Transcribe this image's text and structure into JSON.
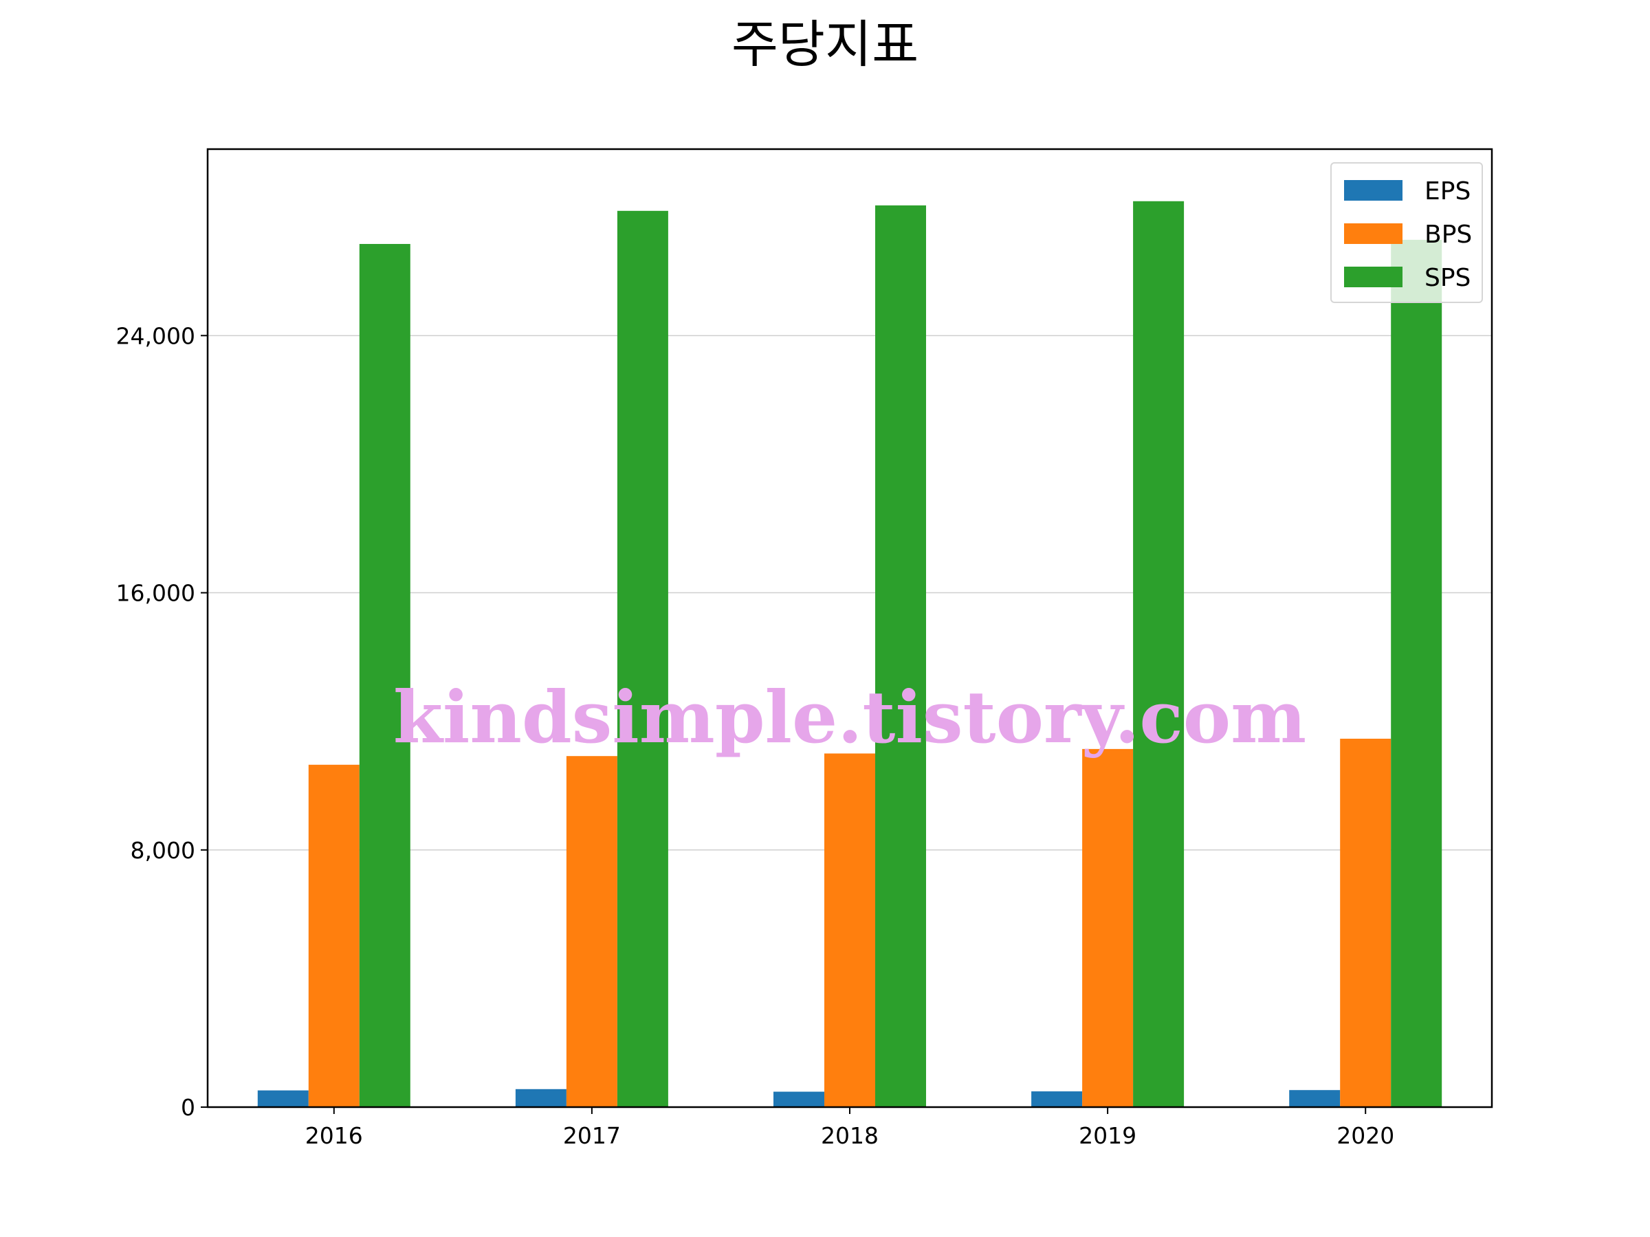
{
  "chart_data": {
    "type": "bar",
    "title": "주당지표",
    "xlabel": "",
    "ylabel": "",
    "categories": [
      "2016",
      "2017",
      "2018",
      "2019",
      "2020"
    ],
    "series": [
      {
        "name": "EPS",
        "color": "#1f77b4",
        "values": [
          520,
          560,
          480,
          490,
          530
        ]
      },
      {
        "name": "BPS",
        "color": "#ff7f0e",
        "values": [
          10650,
          10920,
          11000,
          11140,
          11460
        ]
      },
      {
        "name": "SPS",
        "color": "#2ca02c",
        "values": [
          26850,
          27880,
          28050,
          28180,
          26980
        ]
      }
    ],
    "ylim": [
      0,
      29800
    ],
    "yticks": [
      0,
      8000,
      16000,
      24000
    ],
    "ytick_labels": [
      "0",
      "8,000",
      "16,000",
      "24,000"
    ],
    "grid": "horizontal",
    "legend_position": "top-right",
    "watermark": "kindsimple.tistory.com"
  }
}
